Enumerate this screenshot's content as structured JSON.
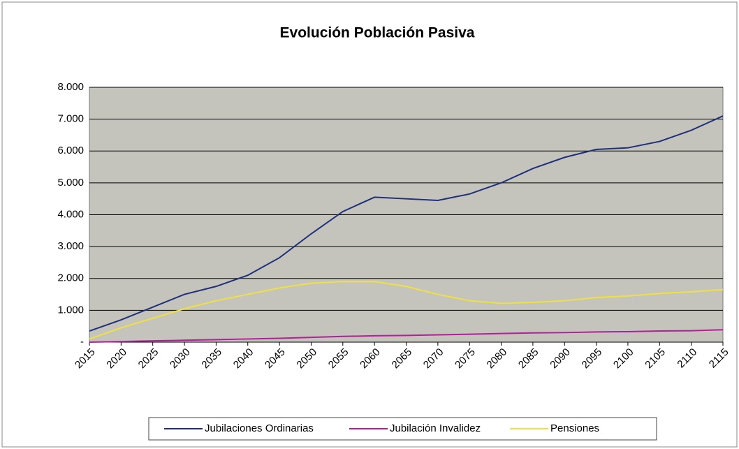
{
  "chart_data": {
    "type": "line",
    "title": "Evolución Población Pasiva",
    "x": [
      2015,
      2020,
      2025,
      2030,
      2035,
      2040,
      2045,
      2050,
      2055,
      2060,
      2065,
      2070,
      2075,
      2080,
      2085,
      2090,
      2095,
      2100,
      2105,
      2110,
      2115
    ],
    "xlim": [
      2015,
      2115
    ],
    "xticks": [
      2015,
      2020,
      2025,
      2030,
      2035,
      2040,
      2045,
      2050,
      2055,
      2060,
      2065,
      2070,
      2075,
      2080,
      2085,
      2090,
      2095,
      2100,
      2105,
      2110,
      2115
    ],
    "ylim": [
      0,
      8000
    ],
    "yticks": [
      {
        "value": 0,
        "label": "-"
      },
      {
        "value": 1000,
        "label": "1.000"
      },
      {
        "value": 2000,
        "label": "2.000"
      },
      {
        "value": 3000,
        "label": "3.000"
      },
      {
        "value": 4000,
        "label": "4.000"
      },
      {
        "value": 5000,
        "label": "5.000"
      },
      {
        "value": 6000,
        "label": "6.000"
      },
      {
        "value": 7000,
        "label": "7.000"
      },
      {
        "value": 8000,
        "label": "8.000"
      }
    ],
    "grid": true,
    "legend": "bottom",
    "series": [
      {
        "name": "Jubilaciones Ordinarias",
        "color": "#1f2f7a",
        "values": [
          350,
          700,
          1100,
          1500,
          1750,
          2100,
          2650,
          3400,
          4100,
          4550,
          4500,
          4450,
          4650,
          5000,
          5450,
          5800,
          6050,
          6100,
          6300,
          6650,
          7100
        ]
      },
      {
        "name": "Jubilación Invalidez",
        "color": "#b0209a",
        "values": [
          0,
          20,
          40,
          60,
          80,
          100,
          120,
          150,
          180,
          200,
          210,
          230,
          250,
          270,
          290,
          300,
          320,
          330,
          350,
          360,
          390
        ]
      },
      {
        "name": "Pensiones",
        "color": "#f0e040",
        "values": [
          100,
          450,
          750,
          1050,
          1300,
          1500,
          1700,
          1850,
          1900,
          1900,
          1750,
          1500,
          1300,
          1220,
          1250,
          1300,
          1400,
          1450,
          1530,
          1580,
          1650
        ]
      }
    ]
  }
}
